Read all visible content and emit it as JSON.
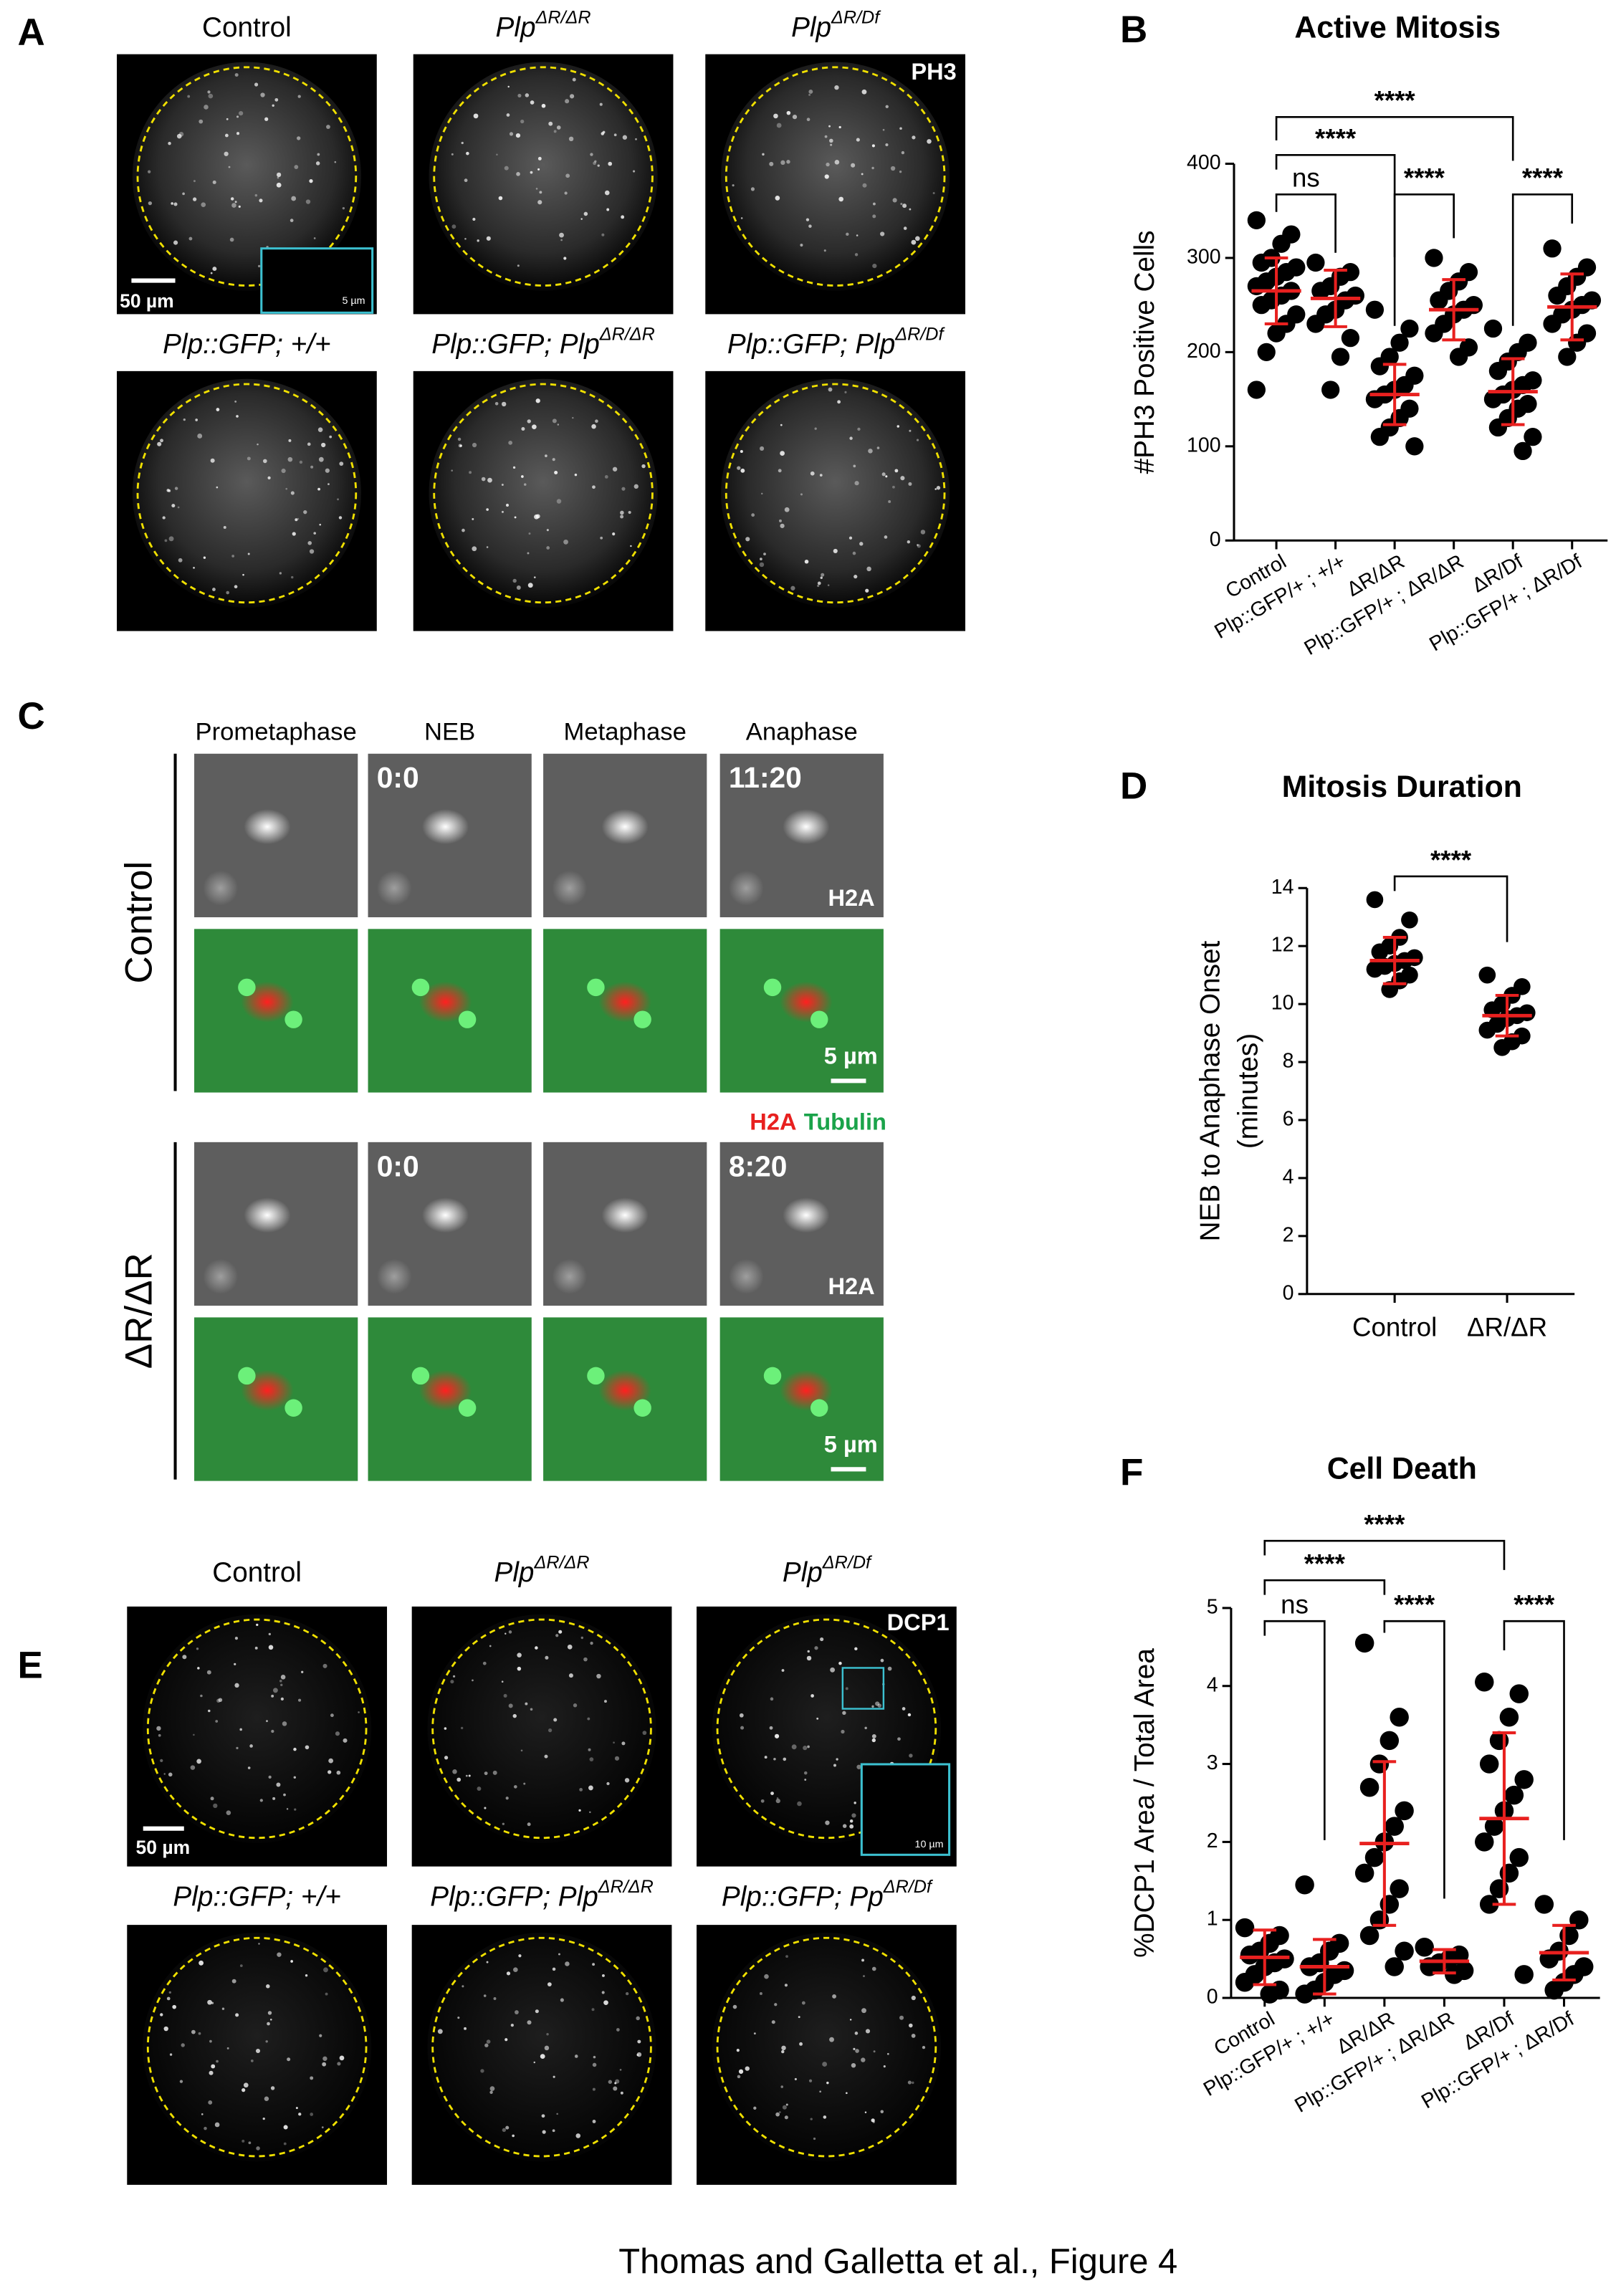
{
  "panels": {
    "A": {
      "label": "A",
      "titles": [
        {
          "text": "Control"
        },
        {
          "text": "Plp",
          "sup": "ΔR/ΔR"
        },
        {
          "text": "Plp",
          "sup": "ΔR/Df"
        }
      ],
      "subtitles": [
        {
          "text": "Plp::GFP; +/+"
        },
        {
          "text": "Plp::GFP; Plp",
          "sup": "ΔR/ΔR"
        },
        {
          "text": "Plp::GFP; Plp",
          "sup": "ΔR/Df"
        }
      ],
      "stain": "PH3",
      "scale_bar": "50 µm",
      "inset_scale": "5 µm"
    },
    "C": {
      "label": "C",
      "stages": [
        "Prometaphase",
        "NEB",
        "Metaphase",
        "Anaphase"
      ],
      "rows": [
        "Control",
        "ΔR/ΔR"
      ],
      "times": [
        [
          "0:0",
          "11:20"
        ],
        [
          "0:0",
          "8:20"
        ]
      ],
      "stain": "H2A",
      "scale_bar": "5 µm",
      "legend": [
        "H2A",
        "Tubulin"
      ]
    },
    "E": {
      "label": "E",
      "titles": [
        {
          "text": "Control"
        },
        {
          "text": "Plp",
          "sup": "ΔR/ΔR"
        },
        {
          "text": "Plp",
          "sup": "ΔR/Df"
        }
      ],
      "subtitles": [
        {
          "text": "Plp::GFP; +/+"
        },
        {
          "text": "Plp::GFP; Plp",
          "sup": "ΔR/ΔR"
        },
        {
          "text": "Plp::GFP; Pp",
          "sup": "ΔR/Df"
        }
      ],
      "stain": "DCP1",
      "scale_bar": "50 µm",
      "inset_scale": "10 µm"
    }
  },
  "caption": "Thomas and Galletta et al., Figure 4",
  "chart_data": [
    {
      "type": "dot",
      "label": "B",
      "title": "Active Mitosis",
      "ylabel": [
        "#PH3 Positive Cells"
      ],
      "categories": [
        "Control",
        "Plp::GFP/+ ; +/+",
        "ΔR/ΔR",
        "Plp::GFP/+ ; ΔR/ΔR",
        "ΔR/Df",
        "Plp::GFP/+ ; ΔR/Df"
      ],
      "values": [
        [
          340,
          325,
          315,
          300,
          295,
          290,
          285,
          280,
          275,
          270,
          265,
          260,
          255,
          250,
          240,
          230,
          220,
          200,
          160
        ],
        [
          295,
          285,
          280,
          270,
          265,
          260,
          255,
          245,
          240,
          230,
          215,
          195,
          160
        ],
        [
          245,
          225,
          210,
          195,
          185,
          175,
          165,
          160,
          155,
          150,
          140,
          130,
          120,
          110,
          100
        ],
        [
          300,
          285,
          275,
          265,
          255,
          250,
          245,
          240,
          230,
          220,
          205,
          195
        ],
        [
          225,
          210,
          200,
          190,
          180,
          170,
          165,
          160,
          155,
          150,
          145,
          140,
          130,
          120,
          110,
          95
        ],
        [
          310,
          290,
          280,
          270,
          260,
          255,
          250,
          245,
          240,
          230,
          220,
          210,
          195
        ]
      ],
      "means": [
        265,
        257,
        155,
        245,
        158,
        248
      ],
      "sd": [
        35,
        30,
        32,
        32,
        35,
        35
      ],
      "ylim": [
        0,
        400
      ],
      "yticks": [
        0,
        100,
        200,
        300,
        400
      ],
      "annotations": [
        "****",
        "****",
        "ns",
        "****",
        "****"
      ],
      "color": "#000000",
      "error_color": "#e8201f"
    },
    {
      "type": "dot",
      "label": "D",
      "title": "Mitosis Duration",
      "ylabel": [
        "NEB to Anaphase Onset",
        "(minutes)"
      ],
      "categories": [
        "Control",
        "ΔR/ΔR"
      ],
      "values": [
        [
          13.6,
          12.9,
          12.3,
          12,
          11.8,
          11.6,
          11.5,
          11.4,
          11.3,
          11.2,
          11,
          10.8,
          10.5
        ],
        [
          11,
          10.6,
          10.3,
          10,
          9.8,
          9.7,
          9.6,
          9.5,
          9.3,
          9.1,
          8.9,
          8.7,
          8.5
        ]
      ],
      "means": [
        11.5,
        9.6
      ],
      "sd": [
        0.8,
        0.7
      ],
      "ylim": [
        0,
        14
      ],
      "yticks": [
        0,
        2,
        4,
        6,
        8,
        10,
        12,
        14
      ],
      "annotations": [
        "****"
      ],
      "color": "#000000",
      "error_color": "#e8201f"
    },
    {
      "type": "dot",
      "label": "F",
      "title": "Cell Death",
      "ylabel": [
        "%DCP1 Area / Total  Area"
      ],
      "categories": [
        "Control",
        "Plp::GFP/+ ; +/+",
        "ΔR/ΔR",
        "Plp::GFP/+ ; ΔR/ΔR",
        "ΔR/Df",
        "Plp::GFP/+ ; ΔR/Df"
      ],
      "values": [
        [
          0.9,
          0.8,
          0.7,
          0.6,
          0.55,
          0.5,
          0.45,
          0.4,
          0.3,
          0.2,
          0.1,
          0.05
        ],
        [
          1.45,
          0.7,
          0.6,
          0.45,
          0.4,
          0.35,
          0.3,
          0.2,
          0.1,
          0.05
        ],
        [
          4.55,
          3.6,
          3.3,
          3,
          2.7,
          2.4,
          2.2,
          2,
          1.8,
          1.6,
          1.4,
          1.2,
          1,
          0.8,
          0.6,
          0.4
        ],
        [
          0.65,
          0.55,
          0.5,
          0.45,
          0.4,
          0.35,
          0.3
        ],
        [
          4.05,
          3.9,
          3.6,
          3.3,
          3,
          2.8,
          2.6,
          2.4,
          2.2,
          2,
          1.8,
          1.6,
          1.4,
          1.2,
          0.3
        ],
        [
          1.2,
          1,
          0.8,
          0.6,
          0.5,
          0.4,
          0.3,
          0.2,
          0.1
        ]
      ],
      "means": [
        0.52,
        0.4,
        1.98,
        0.47,
        2.3,
        0.58
      ],
      "sd": [
        0.35,
        0.35,
        1.05,
        0.15,
        1.1,
        0.35
      ],
      "ylim": [
        0,
        5
      ],
      "yticks": [
        0,
        1,
        2,
        3,
        4,
        5
      ],
      "annotations": [
        "****",
        "****",
        "ns",
        "****",
        "****"
      ],
      "color": "#000000",
      "error_color": "#e8201f"
    }
  ]
}
